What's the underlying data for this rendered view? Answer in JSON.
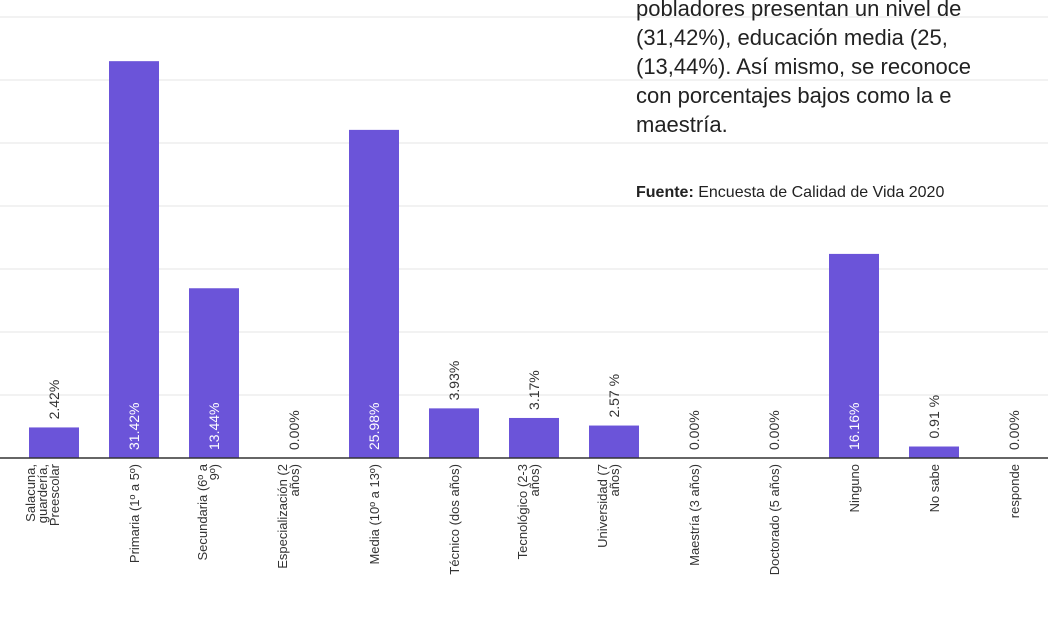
{
  "text": {
    "lines": [
      "pobladores presentan un nivel de",
      "(31,42%),  educación  media  (25,",
      "(13,44%). Así mismo, se reconoce",
      "con  porcentajes  bajos  como  la  e",
      "maestría."
    ],
    "source_label": "Fuente:",
    "source_text": " Encuesta de Calidad de Vida 2020"
  },
  "chart_data": {
    "type": "bar",
    "color": "#6b54d9",
    "categories": [
      [
        "Salacuna,",
        "guardería,",
        "Preescolar"
      ],
      [
        "Primaria (1º a 5º)"
      ],
      [
        "Secundaria (6º a",
        "9º)"
      ],
      [
        "Especialización (2",
        "años)"
      ],
      [
        "Media (10º a 13º)"
      ],
      [
        "Técnico (dos años)"
      ],
      [
        "Tecnológico (2-3",
        "años)"
      ],
      [
        "Universidad (7",
        "años)"
      ],
      [
        "Maestría (3 años)"
      ],
      [
        "Doctorado (5 años)"
      ],
      [
        "Ninguno"
      ],
      [
        "No sabe"
      ],
      [
        "responde"
      ]
    ],
    "values": [
      2.42,
      31.42,
      13.44,
      0.0,
      25.98,
      3.93,
      3.17,
      2.57,
      0.0,
      0.0,
      16.16,
      0.91,
      0.0
    ],
    "labels": [
      "2.42%",
      "31.42%",
      "13.44%",
      "0.00%",
      "25.98%",
      "3.93%",
      "3.17%",
      "2.57 %",
      "0.00%",
      "0.00%",
      "16.16%",
      "0.91 %",
      "0.00%"
    ],
    "ylim": [
      0,
      35
    ],
    "grid": true
  }
}
